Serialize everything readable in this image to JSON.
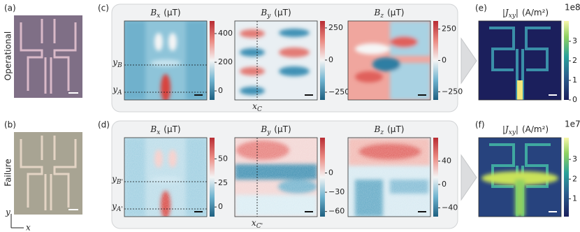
{
  "rows": [
    {
      "row_label": "Operational",
      "labels": {
        "photo": "(a)",
        "field": "(c)",
        "current": "(e)"
      },
      "annotations": {
        "y_top": {
          "sym": "y",
          "sub": "B"
        },
        "y_bottom": {
          "sym": "y",
          "sub": "A"
        },
        "x": {
          "sym": "x",
          "sub": "C"
        }
      },
      "maps": [
        {
          "sym": "B",
          "sub": "x",
          "unit": "(μT)",
          "range": [
            -63,
            488
          ],
          "ticks": [
            0,
            200,
            400
          ]
        },
        {
          "sym": "B",
          "sub": "y",
          "unit": "(μT)",
          "range": [
            -310,
            304
          ],
          "ticks": [
            {
              "value": -250,
              "label": "−250"
            },
            0,
            250
          ]
        },
        {
          "sym": "B",
          "sub": "z",
          "unit": "(μT)",
          "range": [
            -315,
            315
          ],
          "ticks": [
            {
              "value": -250,
              "label": "−250"
            },
            0,
            250
          ]
        }
      ],
      "current": {
        "pre": "|J",
        "sub": "xy",
        "post": "|",
        "unit": "(A/m²)",
        "exponent": "1e8",
        "range": [
          0,
          4.04
        ],
        "ticks": [
          0,
          1,
          2,
          3
        ]
      }
    },
    {
      "row_label": "Failure",
      "labels": {
        "photo": "(b)",
        "field": "(d)",
        "current": "(f)"
      },
      "annotations": {
        "y_top": {
          "sym": "y",
          "sub": "B'"
        },
        "y_bottom": {
          "sym": "y",
          "sub": "A'"
        },
        "x": {
          "sym": "x",
          "sub": "C'"
        }
      },
      "maps": [
        {
          "sym": "B",
          "sub": "x",
          "unit": "(μT)",
          "range": [
            -10,
            72
          ],
          "ticks": [
            0,
            25,
            50
          ]
        },
        {
          "sym": "B",
          "sub": "y",
          "unit": "(μT)",
          "range": [
            -68,
            55
          ],
          "ticks": [
            {
              "value": -60,
              "label": "−60"
            },
            {
              "value": -30,
              "label": "−30"
            },
            0
          ]
        },
        {
          "sym": "B",
          "sub": "z",
          "unit": "(μT)",
          "range": [
            -55,
            80
          ],
          "ticks": [
            {
              "value": -40,
              "label": "−40"
            },
            0,
            40
          ]
        }
      ],
      "current": {
        "pre": "|J",
        "sub": "xy",
        "post": "|",
        "unit": "(A/m²)",
        "exponent": "1e7",
        "range": [
          0.1,
          4.1
        ],
        "ticks": [
          1,
          2,
          3
        ]
      }
    }
  ],
  "axes": {
    "y": "y",
    "x": "x"
  }
}
